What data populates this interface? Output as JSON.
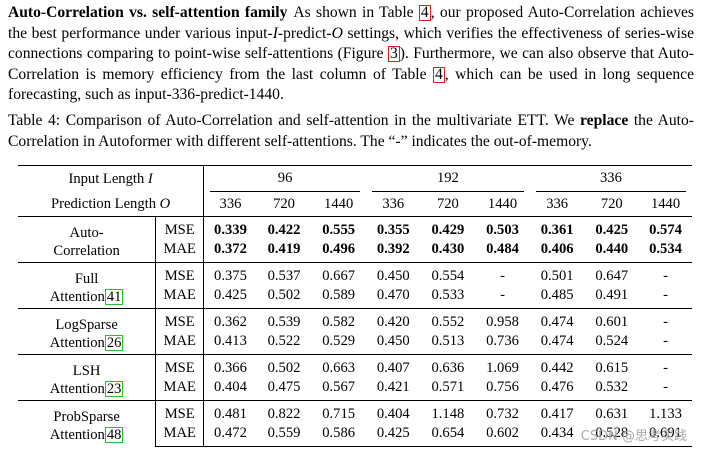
{
  "paragraph": {
    "heading": "Auto-Correlation vs. self-attention family",
    "text_parts": [
      "As shown in Table ",
      "4",
      ", our proposed Auto-Correlation achieves the best performance under various input-",
      "I",
      "-predict-",
      "O",
      " settings, which verifies the effectiveness of series-wise connections comparing to point-wise self-attentions (Figure ",
      "3",
      "). Furthermore, we can also observe that Auto-Correlation is memory efficiency from the last column of Table ",
      "4",
      ", which can be used in long sequence forecasting, such as input-336-predict-1440."
    ]
  },
  "caption": {
    "prefix": "Table 4: Comparison of Auto-Correlation and self-attention in the multivariate ETT. We ",
    "bold_word": "replace",
    "suffix": " the Auto-Correlation in Autoformer with different self-attentions. The “-” indicates the out-of-memory."
  },
  "table": {
    "input_length_label": "Input Length ",
    "input_length_var": "I",
    "prediction_length_label": "Prediction Length ",
    "prediction_length_var": "O",
    "input_lengths": [
      "96",
      "192",
      "336"
    ],
    "prediction_lengths": [
      "336",
      "720",
      "1440",
      "336",
      "720",
      "1440",
      "336",
      "720",
      "1440"
    ],
    "models": [
      {
        "name_line1": "Auto-",
        "name_line2": "Correlation",
        "ref": "",
        "bold": true,
        "mse": [
          "0.339",
          "0.422",
          "0.555",
          "0.355",
          "0.429",
          "0.503",
          "0.361",
          "0.425",
          "0.574"
        ],
        "mae": [
          "0.372",
          "0.419",
          "0.496",
          "0.392",
          "0.430",
          "0.484",
          "0.406",
          "0.440",
          "0.534"
        ]
      },
      {
        "name_line1": "Full",
        "name_line2": "Attention",
        "ref": "41",
        "bold": false,
        "mse": [
          "0.375",
          "0.537",
          "0.667",
          "0.450",
          "0.554",
          "-",
          "0.501",
          "0.647",
          "-"
        ],
        "mae": [
          "0.425",
          "0.502",
          "0.589",
          "0.470",
          "0.533",
          "-",
          "0.485",
          "0.491",
          "-"
        ]
      },
      {
        "name_line1": "LogSparse",
        "name_line2": "Attention",
        "ref": "26",
        "bold": false,
        "mse": [
          "0.362",
          "0.539",
          "0.582",
          "0.420",
          "0.552",
          "0.958",
          "0.474",
          "0.601",
          "-"
        ],
        "mae": [
          "0.413",
          "0.522",
          "0.529",
          "0.450",
          "0.513",
          "0.736",
          "0.474",
          "0.524",
          "-"
        ]
      },
      {
        "name_line1": "LSH",
        "name_line2": "Attention",
        "ref": "23",
        "bold": false,
        "mse": [
          "0.366",
          "0.502",
          "0.663",
          "0.407",
          "0.636",
          "1.069",
          "0.442",
          "0.615",
          "-"
        ],
        "mae": [
          "0.404",
          "0.475",
          "0.567",
          "0.421",
          "0.571",
          "0.756",
          "0.476",
          "0.532",
          "-"
        ]
      },
      {
        "name_line1": "ProbSparse",
        "name_line2": "Attention",
        "ref": "48",
        "bold": false,
        "mse": [
          "0.481",
          "0.822",
          "0.715",
          "0.404",
          "1.148",
          "0.732",
          "0.417",
          "0.631",
          "1.133"
        ],
        "mae": [
          "0.472",
          "0.559",
          "0.586",
          "0.425",
          "0.654",
          "0.602",
          "0.434",
          "0.528",
          "0.691"
        ]
      }
    ],
    "metric_labels": [
      "MSE",
      "MAE"
    ]
  },
  "watermark": "CSDN @思考实践"
}
